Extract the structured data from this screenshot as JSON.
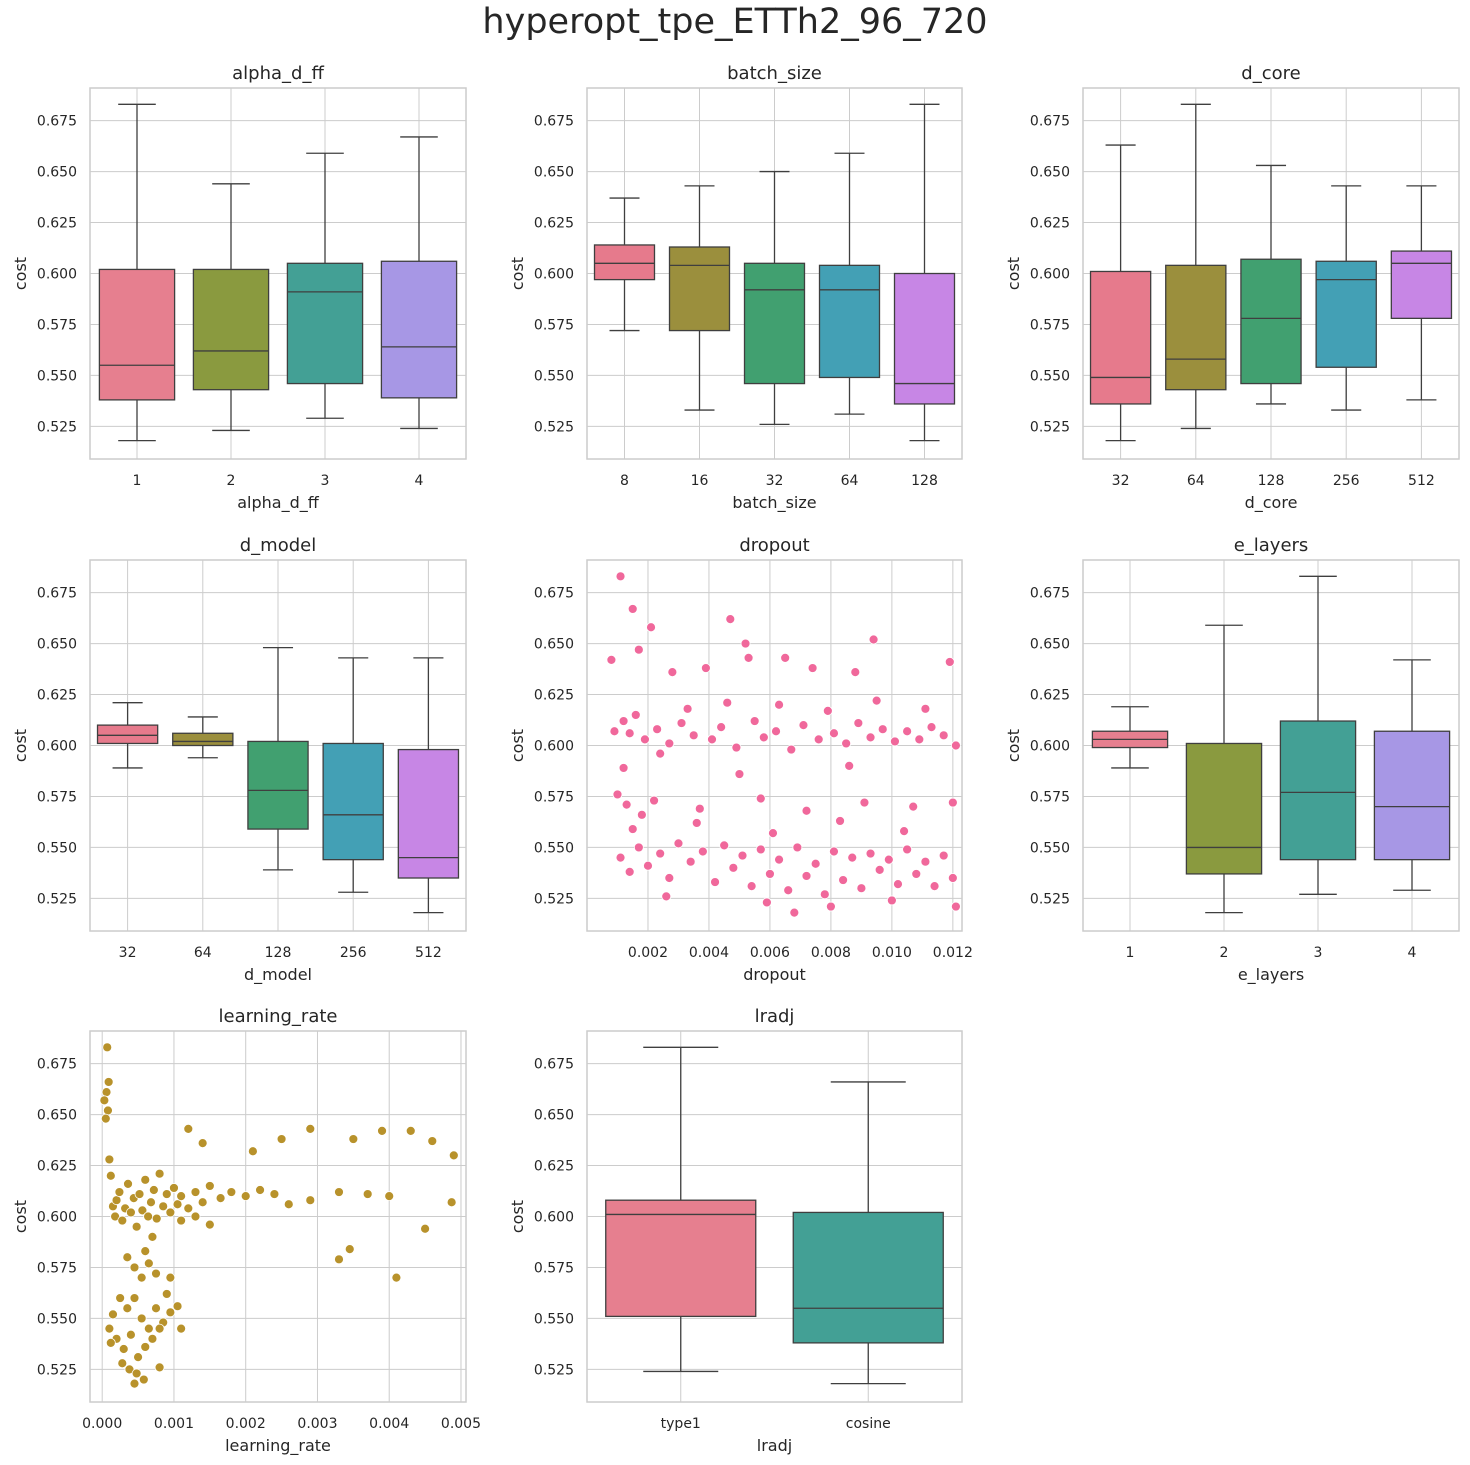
{
  "figure": {
    "title": "hyperopt_tpe_ETTh2_96_720"
  },
  "chart_data": [
    {
      "type": "box",
      "title": "alpha_d_ff",
      "xlabel": "alpha_d_ff",
      "ylabel": "cost",
      "ylim": [
        0.509,
        0.691
      ],
      "yticks": [
        "0.525",
        "0.550",
        "0.575",
        "0.600",
        "0.625",
        "0.650",
        "0.675"
      ],
      "categories": [
        "1",
        "2",
        "3",
        "4"
      ],
      "colors": [
        "#e67f8f",
        "#8a9a3f",
        "#43a095",
        "#a797e5"
      ],
      "boxes": [
        {
          "min": 0.518,
          "q1": 0.538,
          "median": 0.555,
          "q3": 0.602,
          "max": 0.683
        },
        {
          "min": 0.523,
          "q1": 0.543,
          "median": 0.562,
          "q3": 0.602,
          "max": 0.644
        },
        {
          "min": 0.529,
          "q1": 0.546,
          "median": 0.591,
          "q3": 0.605,
          "max": 0.659
        },
        {
          "min": 0.524,
          "q1": 0.539,
          "median": 0.564,
          "q3": 0.606,
          "max": 0.667
        }
      ]
    },
    {
      "type": "box",
      "title": "batch_size",
      "xlabel": "batch_size",
      "ylabel": "cost",
      "ylim": [
        0.509,
        0.691
      ],
      "yticks": [
        "0.525",
        "0.550",
        "0.575",
        "0.600",
        "0.625",
        "0.650",
        "0.675"
      ],
      "categories": [
        "8",
        "16",
        "32",
        "64",
        "128"
      ],
      "colors": [
        "#e67a8c",
        "#9b8f3d",
        "#41a070",
        "#43a0b5",
        "#c786e5"
      ],
      "boxes": [
        {
          "min": 0.572,
          "q1": 0.597,
          "median": 0.605,
          "q3": 0.614,
          "max": 0.637
        },
        {
          "min": 0.533,
          "q1": 0.572,
          "median": 0.604,
          "q3": 0.613,
          "max": 0.643
        },
        {
          "min": 0.526,
          "q1": 0.546,
          "median": 0.592,
          "q3": 0.605,
          "max": 0.65
        },
        {
          "min": 0.531,
          "q1": 0.549,
          "median": 0.592,
          "q3": 0.604,
          "max": 0.659
        },
        {
          "min": 0.518,
          "q1": 0.536,
          "median": 0.546,
          "q3": 0.6,
          "max": 0.683
        }
      ]
    },
    {
      "type": "box",
      "title": "d_core",
      "xlabel": "d_core",
      "ylabel": "cost",
      "ylim": [
        0.509,
        0.691
      ],
      "yticks": [
        "0.525",
        "0.550",
        "0.575",
        "0.600",
        "0.625",
        "0.650",
        "0.675"
      ],
      "categories": [
        "32",
        "64",
        "128",
        "256",
        "512"
      ],
      "colors": [
        "#e67a8c",
        "#9b8f3d",
        "#41a070",
        "#43a0b5",
        "#c786e5"
      ],
      "boxes": [
        {
          "min": 0.518,
          "q1": 0.536,
          "median": 0.549,
          "q3": 0.601,
          "max": 0.663
        },
        {
          "min": 0.524,
          "q1": 0.543,
          "median": 0.558,
          "q3": 0.604,
          "max": 0.683
        },
        {
          "min": 0.536,
          "q1": 0.546,
          "median": 0.578,
          "q3": 0.607,
          "max": 0.653
        },
        {
          "min": 0.533,
          "q1": 0.554,
          "median": 0.597,
          "q3": 0.606,
          "max": 0.643
        },
        {
          "min": 0.538,
          "q1": 0.578,
          "median": 0.605,
          "q3": 0.611,
          "max": 0.643
        }
      ]
    },
    {
      "type": "box",
      "title": "d_model",
      "xlabel": "d_model",
      "ylabel": "cost",
      "ylim": [
        0.509,
        0.691
      ],
      "yticks": [
        "0.525",
        "0.550",
        "0.575",
        "0.600",
        "0.625",
        "0.650",
        "0.675"
      ],
      "categories": [
        "32",
        "64",
        "128",
        "256",
        "512"
      ],
      "colors": [
        "#e67a8c",
        "#9b8f3d",
        "#41a070",
        "#43a0b5",
        "#c786e5"
      ],
      "boxes": [
        {
          "min": 0.589,
          "q1": 0.601,
          "median": 0.605,
          "q3": 0.61,
          "max": 0.621
        },
        {
          "min": 0.594,
          "q1": 0.6,
          "median": 0.602,
          "q3": 0.606,
          "max": 0.614
        },
        {
          "min": 0.539,
          "q1": 0.559,
          "median": 0.578,
          "q3": 0.602,
          "max": 0.648
        },
        {
          "min": 0.528,
          "q1": 0.544,
          "median": 0.566,
          "q3": 0.601,
          "max": 0.643
        },
        {
          "min": 0.518,
          "q1": 0.535,
          "median": 0.545,
          "q3": 0.598,
          "max": 0.643
        }
      ]
    },
    {
      "type": "scatter",
      "title": "dropout",
      "xlabel": "dropout",
      "ylabel": "cost",
      "color": "#f0689b",
      "xlim": [
        0.0,
        0.0123
      ],
      "ylim": [
        0.509,
        0.691
      ],
      "xticks": [
        0.002,
        0.004,
        0.006,
        0.008,
        0.01,
        0.012
      ],
      "xticklabels": [
        "0.002",
        "0.004",
        "0.006",
        "0.008",
        "0.010",
        "0.012"
      ],
      "yticks": [
        "0.525",
        "0.550",
        "0.575",
        "0.600",
        "0.625",
        "0.650",
        "0.675"
      ],
      "points": [
        [
          0.0011,
          0.683
        ],
        [
          0.0015,
          0.667
        ],
        [
          0.0021,
          0.658
        ],
        [
          0.0047,
          0.662
        ],
        [
          0.0052,
          0.65
        ],
        [
          0.0053,
          0.643
        ],
        [
          0.0094,
          0.652
        ],
        [
          0.0119,
          0.641
        ],
        [
          0.0017,
          0.647
        ],
        [
          0.0008,
          0.642
        ],
        [
          0.0065,
          0.643
        ],
        [
          0.0074,
          0.638
        ],
        [
          0.0039,
          0.638
        ],
        [
          0.0088,
          0.636
        ],
        [
          0.0028,
          0.636
        ],
        [
          0.0012,
          0.612
        ],
        [
          0.0014,
          0.606
        ],
        [
          0.0019,
          0.603
        ],
        [
          0.0023,
          0.608
        ],
        [
          0.0027,
          0.601
        ],
        [
          0.0031,
          0.611
        ],
        [
          0.0035,
          0.605
        ],
        [
          0.0041,
          0.603
        ],
        [
          0.0044,
          0.609
        ],
        [
          0.0049,
          0.599
        ],
        [
          0.0055,
          0.612
        ],
        [
          0.0058,
          0.604
        ],
        [
          0.0062,
          0.607
        ],
        [
          0.0067,
          0.598
        ],
        [
          0.0071,
          0.61
        ],
        [
          0.0076,
          0.603
        ],
        [
          0.0081,
          0.606
        ],
        [
          0.0085,
          0.601
        ],
        [
          0.0089,
          0.611
        ],
        [
          0.0093,
          0.604
        ],
        [
          0.0097,
          0.608
        ],
        [
          0.0101,
          0.602
        ],
        [
          0.0105,
          0.607
        ],
        [
          0.0109,
          0.603
        ],
        [
          0.0113,
          0.609
        ],
        [
          0.0117,
          0.605
        ],
        [
          0.0121,
          0.6
        ],
        [
          0.0009,
          0.607
        ],
        [
          0.0016,
          0.615
        ],
        [
          0.0024,
          0.596
        ],
        [
          0.0033,
          0.618
        ],
        [
          0.0046,
          0.621
        ],
        [
          0.0063,
          0.62
        ],
        [
          0.0079,
          0.617
        ],
        [
          0.0095,
          0.622
        ],
        [
          0.0111,
          0.618
        ],
        [
          0.001,
          0.576
        ],
        [
          0.0013,
          0.571
        ],
        [
          0.0018,
          0.566
        ],
        [
          0.0022,
          0.573
        ],
        [
          0.0037,
          0.569
        ],
        [
          0.0057,
          0.574
        ],
        [
          0.0072,
          0.568
        ],
        [
          0.0091,
          0.572
        ],
        [
          0.0107,
          0.57
        ],
        [
          0.012,
          0.572
        ],
        [
          0.0011,
          0.545
        ],
        [
          0.0014,
          0.538
        ],
        [
          0.0017,
          0.55
        ],
        [
          0.002,
          0.541
        ],
        [
          0.0024,
          0.547
        ],
        [
          0.0027,
          0.535
        ],
        [
          0.003,
          0.552
        ],
        [
          0.0034,
          0.543
        ],
        [
          0.0038,
          0.548
        ],
        [
          0.0042,
          0.533
        ],
        [
          0.0045,
          0.551
        ],
        [
          0.0048,
          0.54
        ],
        [
          0.0051,
          0.546
        ],
        [
          0.0054,
          0.531
        ],
        [
          0.0057,
          0.549
        ],
        [
          0.006,
          0.537
        ],
        [
          0.0063,
          0.544
        ],
        [
          0.0066,
          0.529
        ],
        [
          0.0069,
          0.55
        ],
        [
          0.0072,
          0.536
        ],
        [
          0.0075,
          0.542
        ],
        [
          0.0078,
          0.527
        ],
        [
          0.0081,
          0.548
        ],
        [
          0.0084,
          0.534
        ],
        [
          0.0087,
          0.545
        ],
        [
          0.009,
          0.53
        ],
        [
          0.0093,
          0.547
        ],
        [
          0.0096,
          0.539
        ],
        [
          0.0099,
          0.544
        ],
        [
          0.0102,
          0.532
        ],
        [
          0.0105,
          0.549
        ],
        [
          0.0108,
          0.537
        ],
        [
          0.0111,
          0.543
        ],
        [
          0.0114,
          0.531
        ],
        [
          0.0117,
          0.546
        ],
        [
          0.012,
          0.535
        ],
        [
          0.0068,
          0.518
        ],
        [
          0.008,
          0.521
        ],
        [
          0.0121,
          0.521
        ],
        [
          0.0026,
          0.526
        ],
        [
          0.0059,
          0.523
        ],
        [
          0.01,
          0.524
        ],
        [
          0.0015,
          0.559
        ],
        [
          0.0036,
          0.562
        ],
        [
          0.0061,
          0.557
        ],
        [
          0.0083,
          0.563
        ],
        [
          0.0104,
          0.558
        ],
        [
          0.0012,
          0.589
        ],
        [
          0.005,
          0.586
        ],
        [
          0.0086,
          0.59
        ]
      ]
    },
    {
      "type": "box",
      "title": "e_layers",
      "xlabel": "e_layers",
      "ylabel": "cost",
      "ylim": [
        0.509,
        0.691
      ],
      "yticks": [
        "0.525",
        "0.550",
        "0.575",
        "0.600",
        "0.625",
        "0.650",
        "0.675"
      ],
      "categories": [
        "1",
        "2",
        "3",
        "4"
      ],
      "colors": [
        "#e67f8f",
        "#8a9a3f",
        "#43a095",
        "#a797e5"
      ],
      "boxes": [
        {
          "min": 0.589,
          "q1": 0.599,
          "median": 0.603,
          "q3": 0.607,
          "max": 0.619
        },
        {
          "min": 0.518,
          "q1": 0.537,
          "median": 0.55,
          "q3": 0.601,
          "max": 0.659
        },
        {
          "min": 0.527,
          "q1": 0.544,
          "median": 0.577,
          "q3": 0.612,
          "max": 0.683
        },
        {
          "min": 0.529,
          "q1": 0.544,
          "median": 0.57,
          "q3": 0.607,
          "max": 0.642
        }
      ]
    },
    {
      "type": "scatter",
      "title": "learning_rate",
      "xlabel": "learning_rate",
      "ylabel": "cost",
      "color": "#b8922b",
      "xlim": [
        -0.00017,
        0.00507
      ],
      "ylim": [
        0.509,
        0.691
      ],
      "xticks": [
        0.0,
        0.001,
        0.002,
        0.003,
        0.004,
        0.005
      ],
      "xticklabels": [
        "0.000",
        "0.001",
        "0.002",
        "0.003",
        "0.004",
        "0.005"
      ],
      "yticks": [
        "0.525",
        "0.550",
        "0.575",
        "0.600",
        "0.625",
        "0.650",
        "0.675"
      ],
      "points": [
        [
          7e-05,
          0.683
        ],
        [
          9e-05,
          0.666
        ],
        [
          6e-05,
          0.661
        ],
        [
          8e-05,
          0.652
        ],
        [
          5e-05,
          0.648
        ],
        [
          3e-05,
          0.657
        ],
        [
          0.0001,
          0.628
        ],
        [
          0.00012,
          0.62
        ],
        [
          0.00015,
          0.605
        ],
        [
          0.00018,
          0.6
        ],
        [
          0.0002,
          0.608
        ],
        [
          0.00024,
          0.612
        ],
        [
          0.00028,
          0.598
        ],
        [
          0.00032,
          0.604
        ],
        [
          0.00036,
          0.616
        ],
        [
          0.0004,
          0.602
        ],
        [
          0.00044,
          0.609
        ],
        [
          0.00048,
          0.595
        ],
        [
          0.00052,
          0.611
        ],
        [
          0.00056,
          0.603
        ],
        [
          0.0006,
          0.618
        ],
        [
          0.00064,
          0.6
        ],
        [
          0.00068,
          0.607
        ],
        [
          0.00072,
          0.613
        ],
        [
          0.00076,
          0.599
        ],
        [
          0.0008,
          0.621
        ],
        [
          0.00085,
          0.605
        ],
        [
          0.0009,
          0.611
        ],
        [
          0.00095,
          0.602
        ],
        [
          0.001,
          0.614
        ],
        [
          0.00105,
          0.606
        ],
        [
          0.0011,
          0.61
        ],
        [
          0.0012,
          0.604
        ],
        [
          0.0013,
          0.612
        ],
        [
          0.0014,
          0.607
        ],
        [
          0.0015,
          0.615
        ],
        [
          0.00165,
          0.609
        ],
        [
          0.0018,
          0.612
        ],
        [
          0.002,
          0.61
        ],
        [
          0.0022,
          0.613
        ],
        [
          0.0024,
          0.611
        ],
        [
          0.0026,
          0.606
        ],
        [
          0.0029,
          0.608
        ],
        [
          0.0033,
          0.612
        ],
        [
          0.0037,
          0.611
        ],
        [
          0.004,
          0.61
        ],
        [
          0.0012,
          0.643
        ],
        [
          0.0014,
          0.636
        ],
        [
          0.0021,
          0.632
        ],
        [
          0.0025,
          0.638
        ],
        [
          0.0029,
          0.643
        ],
        [
          0.0035,
          0.638
        ],
        [
          0.0039,
          0.642
        ],
        [
          0.0043,
          0.642
        ],
        [
          0.0046,
          0.637
        ],
        [
          0.0049,
          0.63
        ],
        [
          0.0033,
          0.579
        ],
        [
          0.00345,
          0.584
        ],
        [
          0.0041,
          0.57
        ],
        [
          0.0045,
          0.594
        ],
        [
          0.00487,
          0.607
        ],
        [
          0.00035,
          0.58
        ],
        [
          0.00045,
          0.575
        ],
        [
          0.00055,
          0.57
        ],
        [
          0.00065,
          0.577
        ],
        [
          0.00075,
          0.572
        ],
        [
          0.00025,
          0.56
        ],
        [
          0.00035,
          0.555
        ],
        [
          0.00045,
          0.56
        ],
        [
          0.00055,
          0.55
        ],
        [
          0.00065,
          0.545
        ],
        [
          0.00075,
          0.555
        ],
        [
          0.00085,
          0.548
        ],
        [
          0.00095,
          0.553
        ],
        [
          0.00105,
          0.556
        ],
        [
          0.0011,
          0.545
        ],
        [
          0.0002,
          0.54
        ],
        [
          0.0003,
          0.535
        ],
        [
          0.0004,
          0.542
        ],
        [
          0.0005,
          0.531
        ],
        [
          0.0006,
          0.536
        ],
        [
          0.0007,
          0.54
        ],
        [
          0.0008,
          0.545
        ],
        [
          0.00028,
          0.528
        ],
        [
          0.00038,
          0.525
        ],
        [
          0.00048,
          0.523
        ],
        [
          0.00058,
          0.52
        ],
        [
          0.00045,
          0.518
        ],
        [
          0.0008,
          0.526
        ],
        [
          0.0001,
          0.545
        ],
        [
          0.00015,
          0.552
        ],
        [
          0.00012,
          0.538
        ],
        [
          0.0009,
          0.562
        ],
        [
          0.00095,
          0.57
        ],
        [
          0.0006,
          0.583
        ],
        [
          0.0007,
          0.59
        ],
        [
          0.0011,
          0.598
        ],
        [
          0.0013,
          0.6
        ],
        [
          0.0015,
          0.596
        ]
      ]
    },
    {
      "type": "box",
      "title": "lradj",
      "xlabel": "lradj",
      "ylabel": "cost",
      "ylim": [
        0.509,
        0.691
      ],
      "yticks": [
        "0.525",
        "0.550",
        "0.575",
        "0.600",
        "0.625",
        "0.650",
        "0.675"
      ],
      "categories": [
        "type1",
        "cosine"
      ],
      "colors": [
        "#e67f8f",
        "#43a095"
      ],
      "boxes": [
        {
          "min": 0.524,
          "q1": 0.551,
          "median": 0.601,
          "q3": 0.608,
          "max": 0.683
        },
        {
          "min": 0.518,
          "q1": 0.538,
          "median": 0.555,
          "q3": 0.602,
          "max": 0.666
        }
      ]
    }
  ]
}
